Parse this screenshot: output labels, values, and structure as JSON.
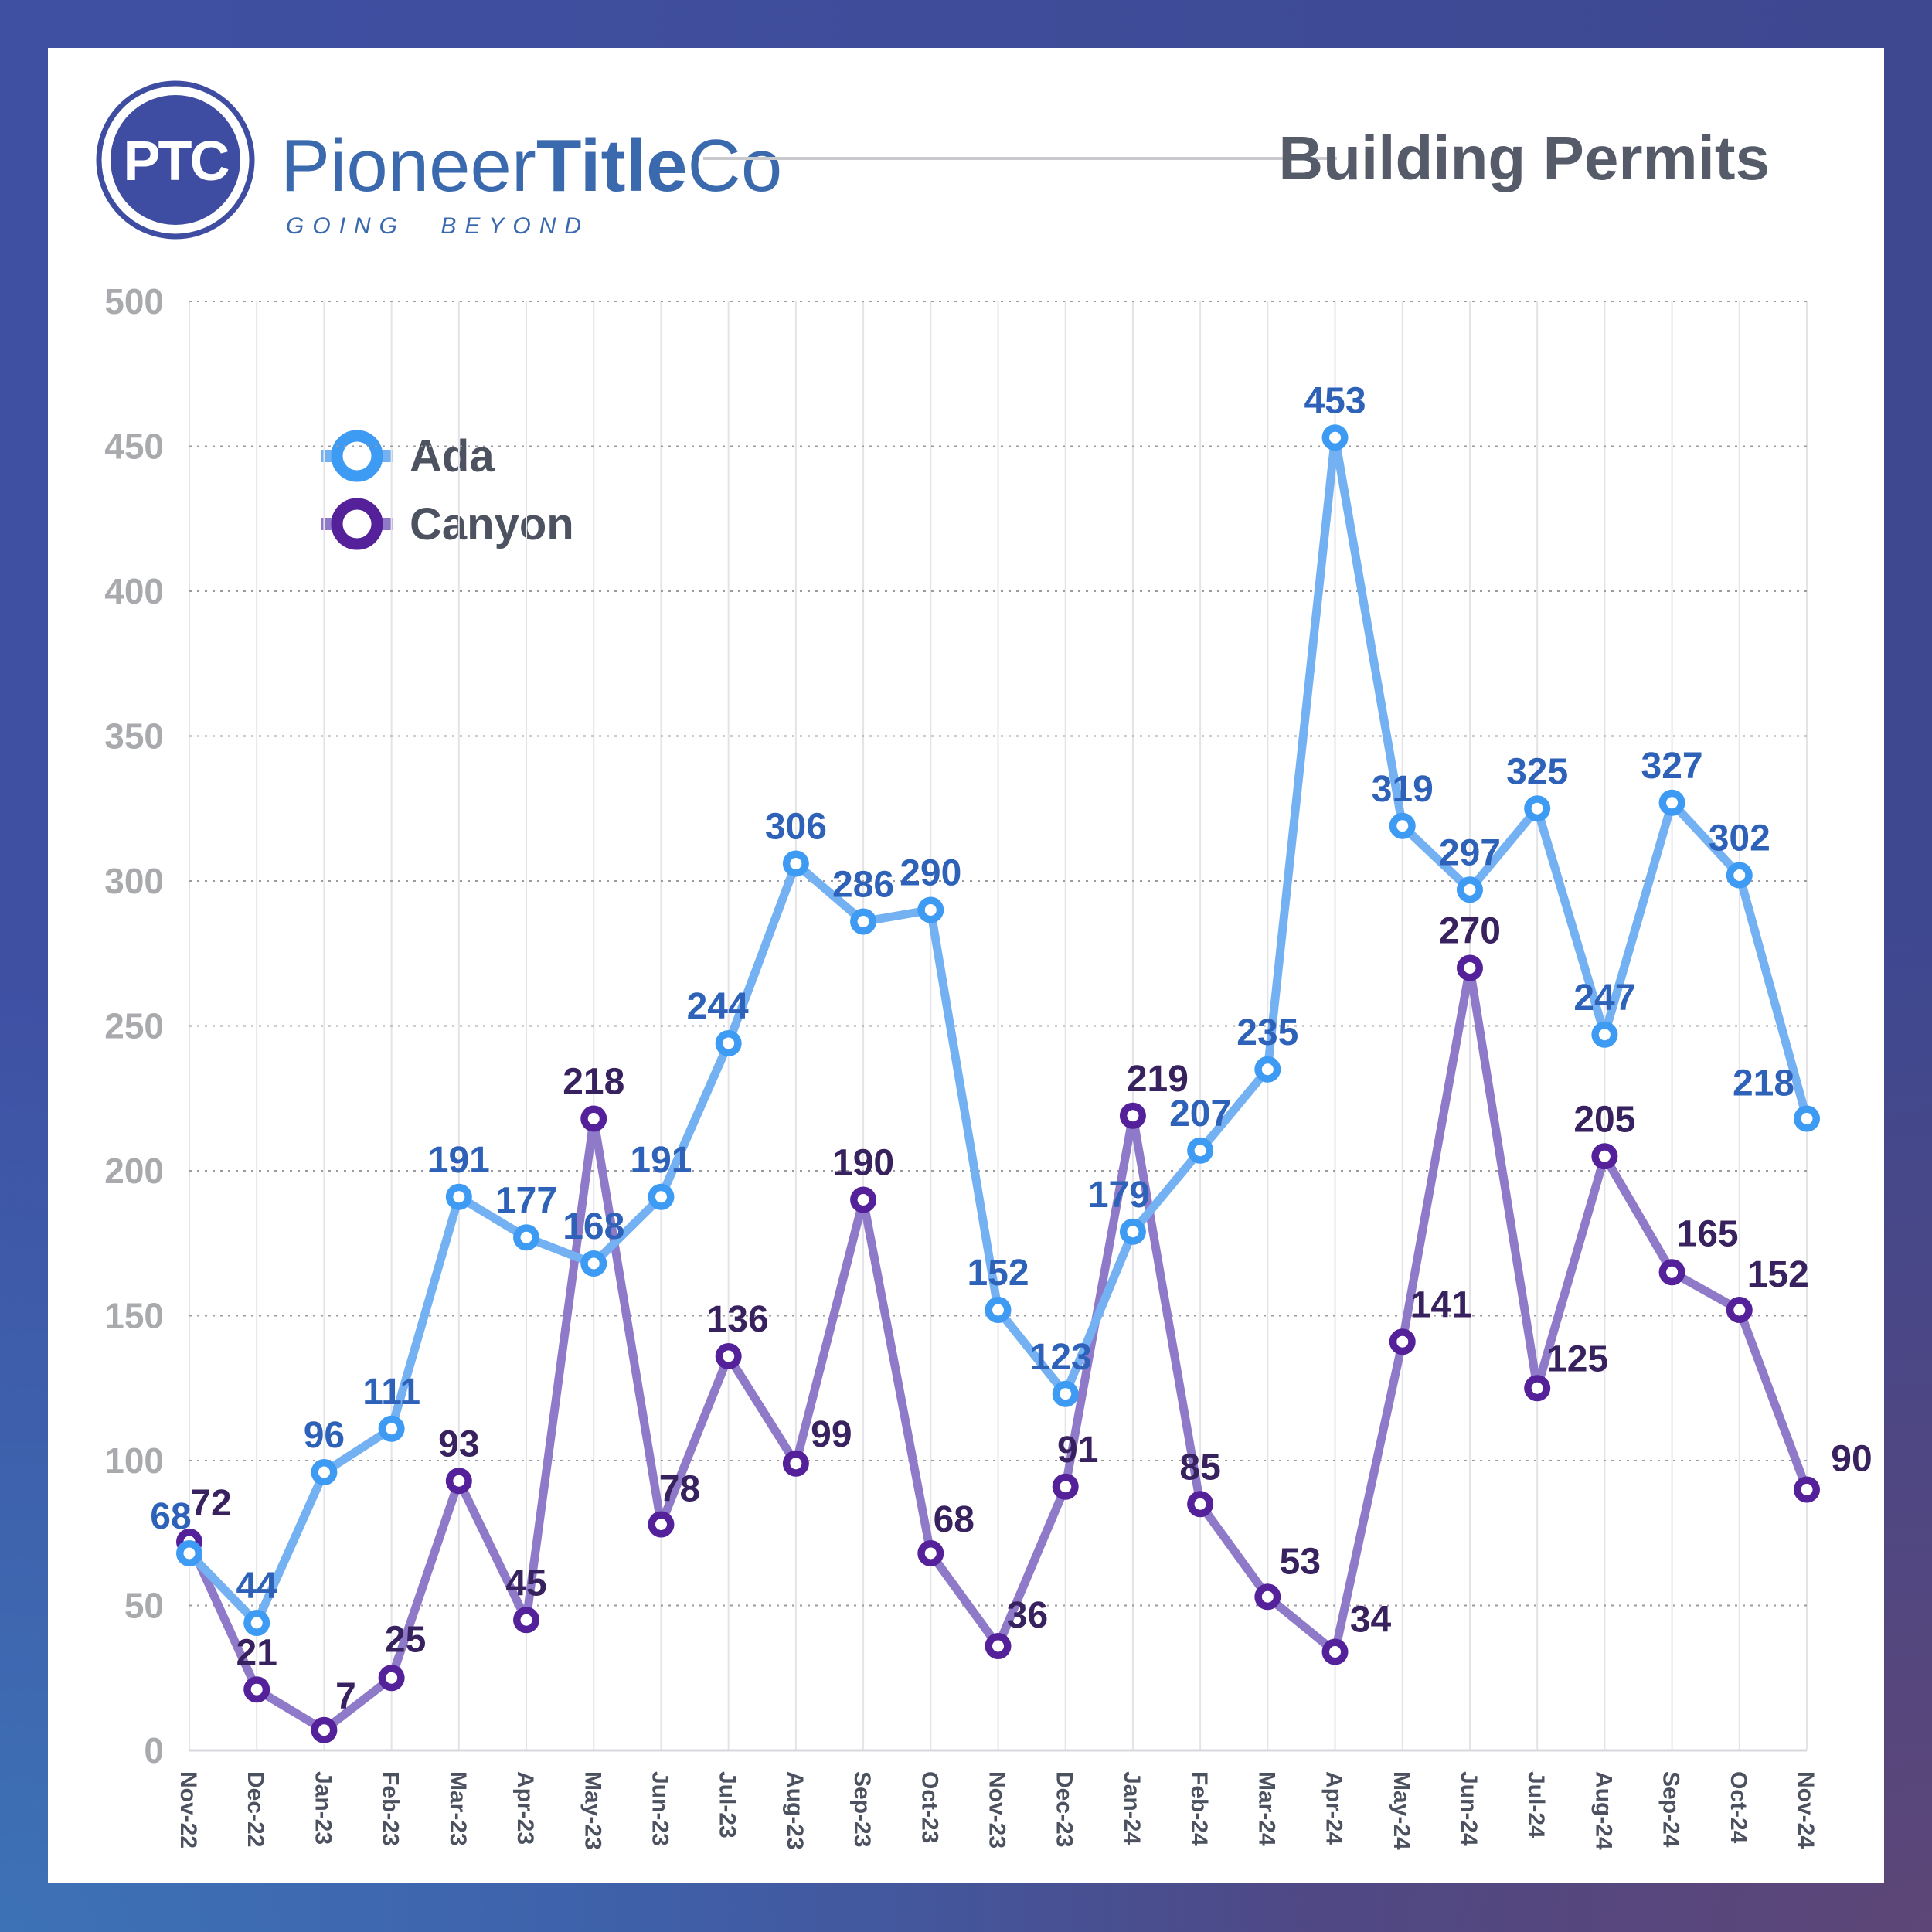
{
  "header": {
    "logo": {
      "monogram": "PTC",
      "brand_pioneer": "Pioneer",
      "brand_title": "Title",
      "brand_co": "Co",
      "tagline": "GOING BEYOND"
    },
    "title": "Building Permits"
  },
  "palette": {
    "logo_disc": "#3e4da1",
    "logo_ring": "#3e4da1",
    "brand_blue": "#3a69ae",
    "card_white": "#ffffff"
  },
  "legend": {
    "items": [
      {
        "label": "Ada"
      },
      {
        "label": "Canyon"
      }
    ]
  },
  "chart_data": {
    "type": "line",
    "title": "Building Permits",
    "x": [
      "Nov-22",
      "Dec-22",
      "Jan-23",
      "Feb-23",
      "Mar-23",
      "Apr-23",
      "May-23",
      "Jun-23",
      "Jul-23",
      "Aug-23",
      "Sep-23",
      "Oct-23",
      "Nov-23",
      "Dec-23",
      "Jan-24",
      "Feb-24",
      "Mar-24",
      "Apr-24",
      "May-24",
      "Jun-24",
      "Jul-24",
      "Aug-24",
      "Sep-24",
      "Oct-24",
      "Nov-24"
    ],
    "ylim": [
      0,
      500
    ],
    "ytick_step": 50,
    "grid": {
      "horizontal": "dotted",
      "vertical": "solid"
    },
    "legend_position": "top-left",
    "series": [
      {
        "name": "Ada",
        "line_color": "#74b1f3",
        "marker_color": "#3e9bf4",
        "label_color": "#2e62b8",
        "values": [
          68,
          44,
          96,
          111,
          191,
          177,
          168,
          191,
          244,
          306,
          286,
          290,
          152,
          123,
          179,
          207,
          235,
          453,
          319,
          297,
          325,
          247,
          327,
          302,
          218
        ],
        "label_offsets": {
          "0": [
            -24,
            0
          ],
          "8": [
            -14,
            0
          ],
          "13": [
            -6,
            0
          ],
          "14": [
            -18,
            0
          ],
          "24": [
            -56,
            2
          ]
        }
      },
      {
        "name": "Canyon",
        "line_color": "#8f79c9",
        "marker_color": "#54219b",
        "label_color": "#37215e",
        "values": [
          72,
          21,
          7,
          25,
          93,
          45,
          218,
          78,
          136,
          99,
          190,
          68,
          36,
          91,
          219,
          85,
          53,
          34,
          141,
          270,
          125,
          205,
          165,
          152,
          90
        ],
        "label_offsets": {
          "0": [
            28,
            -2
          ],
          "2": [
            28,
            4
          ],
          "3": [
            18,
            -2
          ],
          "7": [
            24,
            2
          ],
          "8": [
            12,
            0
          ],
          "9": [
            46,
            10
          ],
          "11": [
            30,
            4
          ],
          "12": [
            38,
            8
          ],
          "13": [
            16,
            0
          ],
          "14": [
            32,
            0
          ],
          "16": [
            42,
            2
          ],
          "17": [
            46,
            6
          ],
          "18": [
            50,
            0
          ],
          "20": [
            52,
            10
          ],
          "22": [
            46,
            -2
          ],
          "23": [
            50,
            2
          ],
          "24": [
            58,
            8
          ]
        }
      }
    ]
  }
}
